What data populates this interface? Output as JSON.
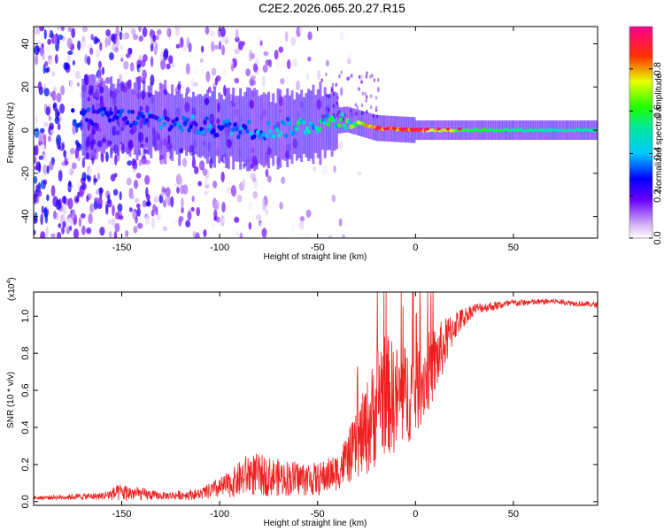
{
  "figure": {
    "title": "C2E2.2026.065.20.27.R15"
  },
  "chart_data": [
    {
      "type": "heatmap",
      "name": "spectrogram",
      "xlabel": "Height of straight line (km)",
      "ylabel": "Frequency (Hz)",
      "xlim": [
        -195,
        93
      ],
      "ylim": [
        -50,
        48
      ],
      "xticks": [
        -150,
        -100,
        -50,
        0,
        50
      ],
      "yticks": [
        -40,
        -20,
        0,
        20,
        40
      ],
      "colorbar": {
        "label": "Normalized spectral amplitude",
        "range": [
          0,
          1
        ],
        "ticks": [
          0.0,
          0.2,
          0.4,
          0.6,
          0.8
        ],
        "tick_labels": [
          "0.0",
          "0.2",
          "0.4",
          "0.6",
          "0.8"
        ],
        "colormap": "rainbow (white-violet-blue-cyan-green-yellow-red-magenta)"
      },
      "ridge": [
        {
          "x": -150,
          "freq": 6,
          "amp": 0.32
        },
        {
          "x": -120,
          "freq": 3,
          "amp": 0.36
        },
        {
          "x": -100,
          "freq": 1,
          "amp": 0.38
        },
        {
          "x": -75,
          "freq": 0,
          "amp": 0.48
        },
        {
          "x": -50,
          "freq": 3,
          "amp": 0.55
        },
        {
          "x": -35,
          "freq": 5,
          "amp": 0.62
        },
        {
          "x": -20,
          "freq": 1,
          "amp": 0.86
        },
        {
          "x": 0,
          "freq": 0,
          "amp": 0.92
        },
        {
          "x": 20,
          "freq": 0,
          "amp": 0.68
        },
        {
          "x": 50,
          "freq": 0,
          "amp": 0.55
        },
        {
          "x": 93,
          "freq": 0,
          "amp": 0.5
        }
      ]
    },
    {
      "type": "line",
      "name": "snr",
      "xlabel": "Height of straight line (km)",
      "ylabel": "SNR (10 * v/v)",
      "y_multiplier": "(x10",
      "y_multiplier_exp": "4",
      "xlim": [
        -195,
        93
      ],
      "ylim": [
        -0.02,
        1.13
      ],
      "xticks": [
        -150,
        -100,
        -50,
        0,
        50
      ],
      "yticks": [
        0.0,
        0.2,
        0.4,
        0.6,
        0.8,
        1.0
      ],
      "ytick_labels": [
        "0.0",
        "0.2",
        "0.4",
        "0.6",
        "0.8",
        "1.0"
      ],
      "color": "#ee2020",
      "envelope": [
        {
          "x": -195,
          "mean": 0.02,
          "spread": 0.01
        },
        {
          "x": -160,
          "mean": 0.03,
          "spread": 0.02
        },
        {
          "x": -150,
          "mean": 0.05,
          "spread": 0.05
        },
        {
          "x": -130,
          "mean": 0.03,
          "spread": 0.02
        },
        {
          "x": -110,
          "mean": 0.04,
          "spread": 0.03
        },
        {
          "x": -95,
          "mean": 0.09,
          "spread": 0.07
        },
        {
          "x": -85,
          "mean": 0.15,
          "spread": 0.12
        },
        {
          "x": -70,
          "mean": 0.13,
          "spread": 0.1
        },
        {
          "x": -50,
          "mean": 0.12,
          "spread": 0.09
        },
        {
          "x": -40,
          "mean": 0.16,
          "spread": 0.1
        },
        {
          "x": -30,
          "mean": 0.3,
          "spread": 0.18
        },
        {
          "x": -22,
          "mean": 0.45,
          "spread": 0.3
        },
        {
          "x": -18,
          "mean": 0.6,
          "spread": 0.35
        },
        {
          "x": -10,
          "mean": 0.55,
          "spread": 0.3
        },
        {
          "x": 0,
          "mean": 0.6,
          "spread": 0.25
        },
        {
          "x": 10,
          "mean": 0.75,
          "spread": 0.2
        },
        {
          "x": 20,
          "mean": 0.95,
          "spread": 0.08
        },
        {
          "x": 30,
          "mean": 1.04,
          "spread": 0.03
        },
        {
          "x": 50,
          "mean": 1.07,
          "spread": 0.02
        },
        {
          "x": 70,
          "mean": 1.08,
          "spread": 0.015
        },
        {
          "x": 93,
          "mean": 1.06,
          "spread": 0.015
        }
      ]
    }
  ]
}
